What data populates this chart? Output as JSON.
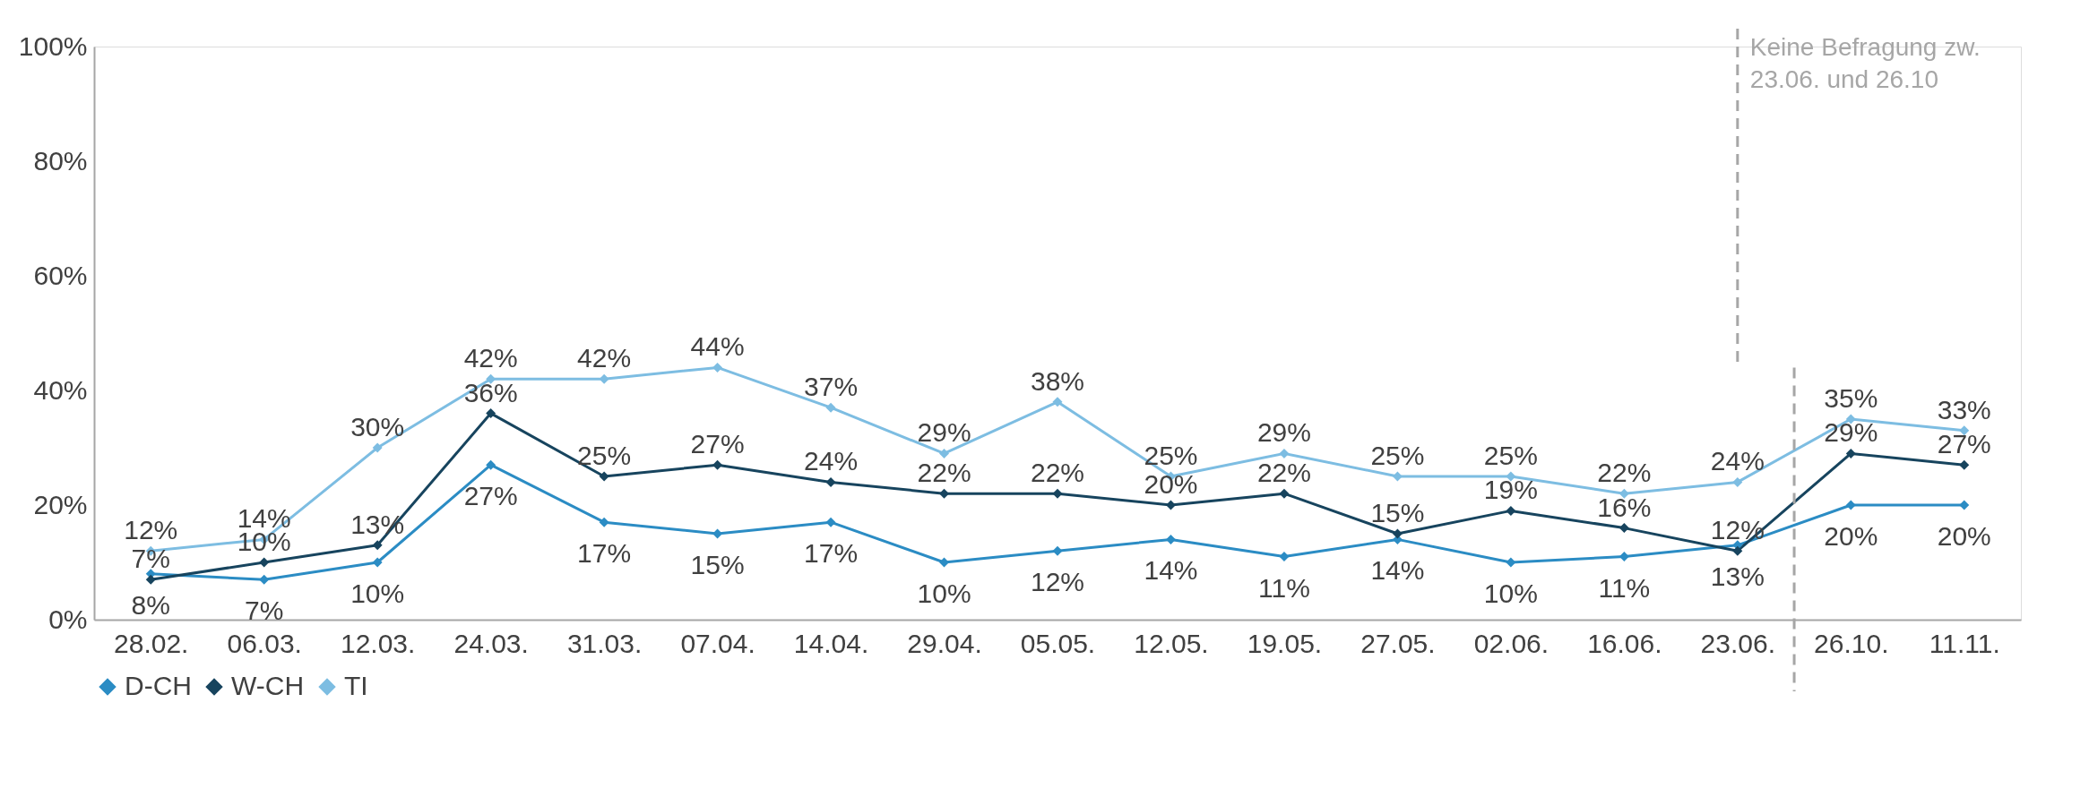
{
  "chart_data": {
    "type": "line",
    "categories": [
      "28.02.",
      "06.03.",
      "12.03.",
      "24.03.",
      "31.03.",
      "07.04.",
      "14.04.",
      "29.04.",
      "05.05.",
      "12.05.",
      "19.05.",
      "27.05.",
      "02.06.",
      "16.06.",
      "23.06.",
      "26.10.",
      "11.11."
    ],
    "series": [
      {
        "name": "D-CH",
        "color": "#2b8cc4",
        "values": [
          8,
          7,
          10,
          27,
          17,
          15,
          17,
          10,
          12,
          14,
          11,
          14,
          10,
          11,
          13,
          20,
          20
        ],
        "value_labels": [
          "8%",
          "7%",
          "10%",
          "27%",
          "17%",
          "15%",
          "17%",
          "10%",
          "12%",
          "14%",
          "11%",
          "14%",
          "10%",
          "11%",
          "13%",
          "20%",
          "20%"
        ]
      },
      {
        "name": "W-CH",
        "color": "#17445e",
        "values": [
          7,
          10,
          13,
          36,
          25,
          27,
          24,
          22,
          22,
          20,
          22,
          15,
          19,
          16,
          12,
          29,
          27
        ],
        "value_labels": [
          "7%",
          "10%",
          "13%",
          "36%",
          "25%",
          "27%",
          "24%",
          "22%",
          "22%",
          "20%",
          "22%",
          "15%",
          "19%",
          "16%",
          "12%",
          "29%",
          "27%"
        ]
      },
      {
        "name": "TI",
        "color": "#7dbde2",
        "values": [
          12,
          14,
          30,
          42,
          42,
          44,
          37,
          29,
          38,
          25,
          29,
          25,
          25,
          22,
          24,
          35,
          33
        ],
        "value_labels": [
          "12%",
          "14%",
          "30%",
          "42%",
          "42%",
          "44%",
          "37%",
          "29%",
          "38%",
          "25%",
          "29%",
          "25%",
          "25%",
          "22%",
          "24%",
          "35%",
          "33%"
        ]
      }
    ],
    "ylim": [
      0,
      100
    ],
    "yticks": [
      {
        "value": 0,
        "label": "0%"
      },
      {
        "value": 20,
        "label": "20%"
      },
      {
        "value": 40,
        "label": "40%"
      },
      {
        "value": 60,
        "label": "60%"
      },
      {
        "value": 80,
        "label": "80%"
      },
      {
        "value": 100,
        "label": "100%"
      }
    ],
    "marker": "diamond",
    "line_style": "solid",
    "legend": "bottom",
    "ref_lines": [
      {
        "axis": "x",
        "value": "23.06.",
        "label": "Keine Befragung zw.\n23.06. und 26.10",
        "color": "#a6a6a6",
        "line_style": "dashed"
      }
    ]
  }
}
